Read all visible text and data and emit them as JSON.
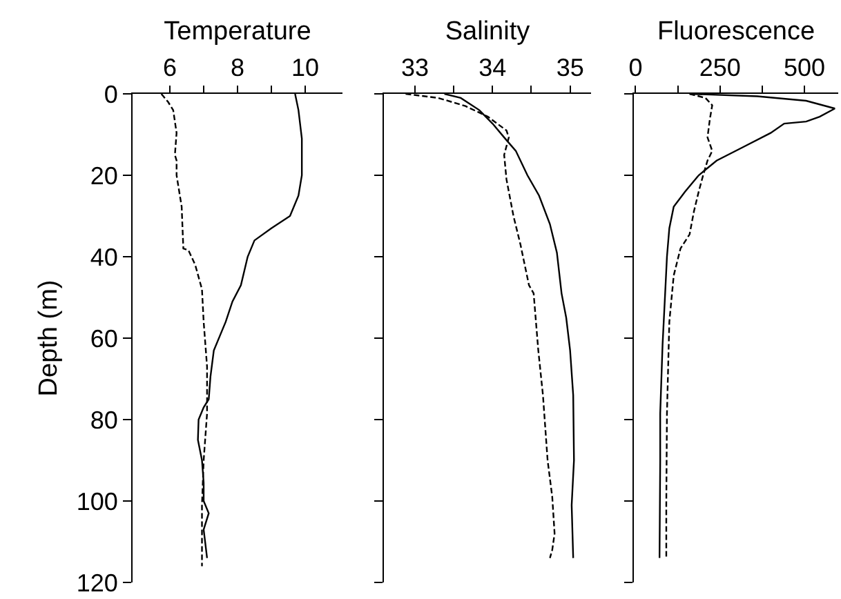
{
  "chart_data": [
    {
      "type": "line",
      "title": "Temperature",
      "ylabel": "Depth (m)",
      "xlim": [
        4.9,
        11.1
      ],
      "xticks": [
        6,
        {
          "value": 7,
          "label": null
        },
        8,
        {
          "value": 9,
          "label": null
        },
        10
      ],
      "ylim": [
        120,
        0
      ],
      "yticks": [
        0,
        20,
        40,
        60,
        80,
        100,
        120
      ],
      "series": [
        {
          "color": "#000000",
          "line_style": "solid",
          "x": [
            9.7,
            9.8,
            9.9,
            9.9,
            9.8,
            9.55,
            9.0,
            8.5,
            8.3,
            8.1,
            7.85,
            7.65,
            7.5,
            7.3,
            7.2,
            7.15,
            7.0,
            6.85,
            6.83,
            6.95,
            7.0,
            7.0,
            7.15,
            7.0,
            7.1
          ],
          "values": [
            0,
            4,
            11,
            20,
            25,
            30,
            33,
            36,
            40,
            47,
            51,
            56,
            59,
            63,
            69.5,
            75,
            77,
            80,
            85,
            90,
            95.5,
            100,
            103,
            107,
            114
          ]
        },
        {
          "color": "#000000",
          "line_style": "dashed",
          "x": [
            5.75,
            5.95,
            6.1,
            6.2,
            6.15,
            6.2,
            6.2,
            6.35,
            6.4,
            6.55,
            6.75,
            6.95,
            7.0,
            7.1,
            7.1,
            7.0,
            6.95,
            6.95,
            6.95
          ],
          "values": [
            0,
            2,
            4,
            9.6,
            15,
            16.4,
            20,
            27.7,
            38,
            38.4,
            42,
            48,
            56,
            67,
            78.5,
            90,
            101,
            112,
            116
          ]
        }
      ]
    },
    {
      "type": "line",
      "title": "Salinity",
      "xlim": [
        32.6,
        35.27
      ],
      "xticks": [
        33,
        {
          "value": 33.5,
          "label": null
        },
        34,
        {
          "value": 34.5,
          "label": null
        },
        35
      ],
      "ylim": [
        120,
        0
      ],
      "yticks": [
        0,
        20,
        40,
        60,
        80,
        100,
        120
      ],
      "tick_labels": "x",
      "series": [
        {
          "color": "#000000",
          "line_style": "solid",
          "x": [
            33.38,
            33.59,
            33.83,
            34.0,
            34.15,
            34.3,
            34.45,
            34.6,
            34.74,
            34.83,
            34.89,
            34.95,
            35.0,
            35.04,
            35.05,
            35.02,
            35.04
          ],
          "values": [
            0,
            1,
            4,
            7.3,
            10.7,
            14,
            20,
            25,
            32,
            39,
            49,
            55,
            63,
            74,
            90,
            101,
            114
          ]
        },
        {
          "color": "#000000",
          "line_style": "dashed",
          "x": [
            32.88,
            33.3,
            33.65,
            33.94,
            34.06,
            34.18,
            34.21,
            34.15,
            34.18,
            34.27,
            34.36,
            34.47,
            34.53,
            34.59,
            34.65,
            34.71,
            34.77,
            34.8,
            34.77,
            34.74
          ],
          "values": [
            0,
            1,
            3,
            5.6,
            7.3,
            9,
            10.7,
            15,
            21,
            30,
            37,
            47,
            49,
            63,
            74,
            90,
            99,
            108,
            112,
            114
          ]
        }
      ]
    },
    {
      "type": "line",
      "title": "Fluorescence",
      "xlim": [
        -5,
        600
      ],
      "xticks": [
        0,
        {
          "value": 125,
          "label": null
        },
        250,
        {
          "value": 375,
          "label": null
        },
        500
      ],
      "ylim": [
        120,
        0
      ],
      "yticks": [
        0,
        20,
        40,
        60,
        80,
        100,
        120
      ],
      "tick_labels": "x",
      "series": [
        {
          "color": "#000000",
          "line_style": "solid",
          "x": [
            160,
            360,
            505,
            590,
            545,
            505,
            440,
            400,
            320,
            240,
            187,
            147,
            113,
            100,
            93,
            87,
            80,
            73,
            73,
            71
          ],
          "values": [
            0,
            0.6,
            1.7,
            3.6,
            5.6,
            6.8,
            7.3,
            9.6,
            13,
            16.4,
            20,
            24,
            27.7,
            33,
            40,
            50,
            61.6,
            78.5,
            90,
            114
          ]
        },
        {
          "color": "#000000",
          "line_style": "dashed",
          "x": [
            160,
            207,
            227,
            220,
            213,
            227,
            213,
            200,
            187,
            173,
            160,
            133,
            113,
            100,
            93,
            91,
            91
          ],
          "values": [
            0,
            1,
            2.8,
            6.2,
            10.7,
            14,
            16.4,
            20,
            24,
            28.8,
            34.5,
            38,
            44.6,
            56,
            78.5,
            101,
            114
          ]
        }
      ]
    }
  ]
}
